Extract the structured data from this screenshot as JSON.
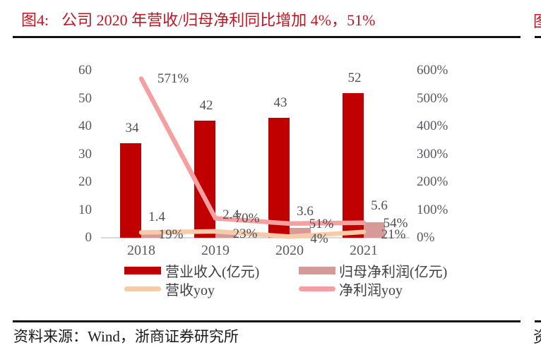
{
  "figure": {
    "label": "图4:",
    "title": "公司 2020 年营收/归母净利同比增加 4%，51%",
    "source_label": "资料来源：",
    "source_text": "Wind，浙商证券研究所",
    "right_edge_fragments": {
      "top_char": "图",
      "bottom_char": "资"
    }
  },
  "colors": {
    "title_red": "#C01622",
    "revenue_bar": "#C00000",
    "profit_bar": "#D69A99",
    "revenue_yoy_line": "#F8CBA8",
    "profit_yoy_line": "#F59FA0",
    "axis_label": "#595962",
    "data_label": "#4F4F57",
    "baseline": "#D9D9D9",
    "rule_black": "#111111"
  },
  "chart_data": {
    "type": "bar",
    "subtype": "combo-bar-line-dual-axis",
    "categories": [
      "2018",
      "2019",
      "2020",
      "2021"
    ],
    "series": [
      {
        "name": "营业收入(亿元)",
        "kind": "bar",
        "axis": "left",
        "values": [
          34,
          42,
          43,
          52
        ],
        "labels": [
          "34",
          "42",
          "43",
          "52"
        ],
        "color_key": "revenue_bar"
      },
      {
        "name": "归母净利润(亿元)",
        "kind": "bar",
        "axis": "left",
        "values": [
          1.4,
          2.4,
          3.6,
          5.6
        ],
        "labels": [
          "1.4",
          "2.4",
          "3.6",
          "5.6"
        ],
        "color_key": "profit_bar"
      },
      {
        "name": "营收yoy",
        "kind": "line",
        "axis": "right",
        "values": [
          19,
          23,
          4,
          21
        ],
        "labels": [
          "19%",
          "23%",
          "4%",
          "21%"
        ],
        "color_key": "revenue_yoy_line"
      },
      {
        "name": "净利润yoy",
        "kind": "line",
        "axis": "right",
        "values": [
          571,
          70,
          51,
          54
        ],
        "labels": [
          "571%",
          "70%",
          "51%",
          "54%"
        ],
        "color_key": "profit_yoy_line"
      }
    ],
    "left_axis": {
      "min": 0,
      "max": 60,
      "ticks": [
        0,
        10,
        20,
        30,
        40,
        50,
        60
      ]
    },
    "right_axis": {
      "min": 0,
      "max": 600,
      "tick_labels": [
        "0%",
        "100%",
        "200%",
        "300%",
        "400%",
        "500%",
        "600%"
      ]
    },
    "grid": false,
    "legend_position": "bottom",
    "legend": [
      {
        "name": "营业收入(亿元)",
        "swatch": "bar",
        "color_key": "revenue_bar"
      },
      {
        "name": "归母净利润(亿元)",
        "swatch": "bar",
        "color_key": "profit_bar"
      },
      {
        "name": "营收yoy",
        "swatch": "line",
        "color_key": "revenue_yoy_line"
      },
      {
        "name": "净利润yoy",
        "swatch": "line",
        "color_key": "profit_yoy_line"
      }
    ]
  }
}
